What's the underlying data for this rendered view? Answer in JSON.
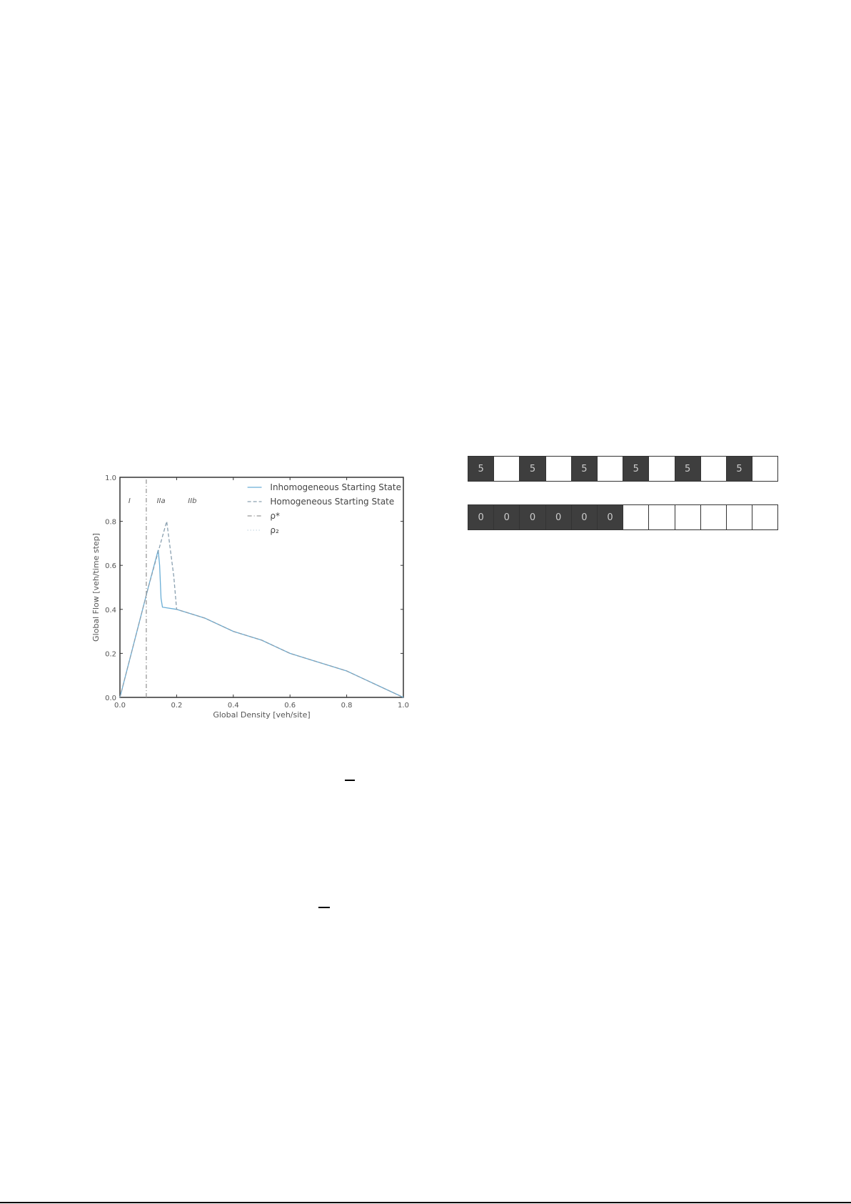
{
  "chart_data": {
    "type": "line",
    "xlabel": "Global Density [veh/site]",
    "ylabel": "Global Flow [veh/time step]",
    "xlim": [
      0,
      1
    ],
    "ylim": [
      0,
      1
    ],
    "xticks": [
      "0.0",
      "0.2",
      "0.4",
      "0.6",
      "0.8",
      "1.0"
    ],
    "yticks": [
      "0.0",
      "0.2",
      "0.4",
      "0.6",
      "0.8",
      "1.0"
    ],
    "legend_position": "top-right",
    "grid": false,
    "regions": [
      "I",
      "IIa",
      "IIb"
    ],
    "series": [
      {
        "name": "Inhomogeneous Starting State",
        "color": "#6aaed6",
        "style": "solid",
        "x": [
          0,
          0.05,
          0.1,
          0.135,
          0.14,
          0.145,
          0.15,
          0.2,
          0.3,
          0.4,
          0.5,
          0.6,
          0.7,
          0.8,
          0.9,
          1.0
        ],
        "y": [
          0,
          0.25,
          0.5,
          0.67,
          0.6,
          0.45,
          0.41,
          0.4,
          0.36,
          0.3,
          0.26,
          0.2,
          0.16,
          0.12,
          0.06,
          0
        ]
      },
      {
        "name": "Homogeneous Starting State",
        "color": "#8aa0b0",
        "style": "dashed",
        "x": [
          0,
          0.05,
          0.1,
          0.165,
          0.19,
          0.2,
          0.3,
          0.4,
          0.5,
          0.6,
          0.7,
          0.8,
          0.9,
          1.0
        ],
        "y": [
          0,
          0.25,
          0.5,
          0.8,
          0.55,
          0.4,
          0.36,
          0.3,
          0.26,
          0.2,
          0.16,
          0.12,
          0.06,
          0
        ]
      },
      {
        "name": "ρ*",
        "color": "#999999",
        "style": "dashdot",
        "x": [
          0.093,
          0.093
        ],
        "y": [
          0,
          1
        ]
      },
      {
        "name": "ρ₂",
        "color": "#b0c8d8",
        "style": "dotted",
        "x": [],
        "y": []
      }
    ]
  },
  "diagram": {
    "row1": [
      "5",
      "",
      "5",
      "",
      "5",
      "",
      "5",
      "",
      "5",
      "",
      "5",
      ""
    ],
    "row2": [
      "0",
      "0",
      "0",
      "0",
      "0",
      "0",
      "",
      "",
      "",
      "",
      "",
      ""
    ]
  }
}
